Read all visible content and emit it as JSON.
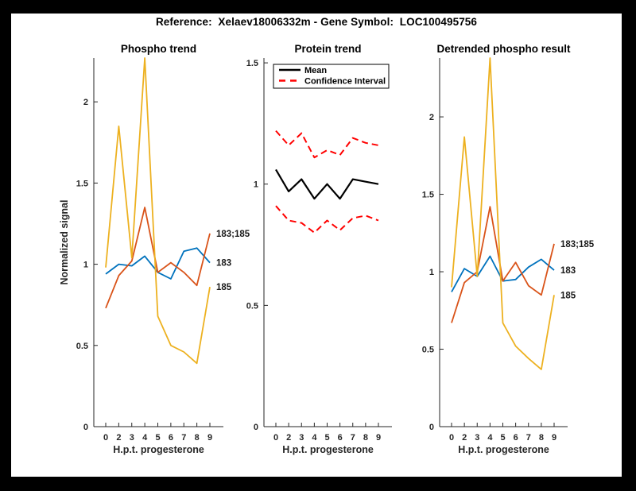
{
  "title": "Reference:  Xelaev18006332m - Gene Symbol:  LOC100495756",
  "colors": {
    "blue": "#0072BD",
    "orange": "#D95319",
    "yellow": "#EDB120",
    "red": "#FF0000",
    "black": "#000000",
    "axis": "#262626",
    "figure_background": "#ffffff",
    "page_border": "#000000"
  },
  "chart_data": [
    {
      "type": "line",
      "title": "Phospho trend",
      "xlabel": "H.p.t. progesterone",
      "ylabel": "Normalized signal",
      "x_tick_labels": [
        "0",
        "2",
        "3",
        "4",
        "5",
        "6",
        "7",
        "8",
        "9"
      ],
      "ylim": [
        0,
        2.27
      ],
      "yticks": [
        0,
        0.5,
        1,
        1.5,
        2
      ],
      "ytick_labels": [
        "0",
        "0.5",
        "1",
        "1.5",
        "2"
      ],
      "grid": false,
      "legend": null,
      "series": [
        {
          "name": "183",
          "color_key": "blue",
          "dashed": false,
          "end_label": "183",
          "values": [
            0.94,
            1.0,
            0.99,
            1.05,
            0.95,
            0.91,
            1.08,
            1.1,
            1.01
          ]
        },
        {
          "name": "183;185",
          "color_key": "orange",
          "dashed": false,
          "end_label": "183;185",
          "values": [
            0.73,
            0.93,
            1.02,
            1.35,
            0.95,
            1.01,
            0.95,
            0.87,
            1.19
          ]
        },
        {
          "name": "185",
          "color_key": "yellow",
          "dashed": false,
          "end_label": "185",
          "values": [
            0.98,
            1.85,
            1.04,
            2.27,
            0.68,
            0.5,
            0.46,
            0.39,
            0.86
          ]
        }
      ]
    },
    {
      "type": "line",
      "title": "Protein trend",
      "xlabel": "H.p.t. progesterone",
      "ylabel": "",
      "x_tick_labels": [
        "0",
        "2",
        "3",
        "4",
        "5",
        "6",
        "7",
        "8",
        "9"
      ],
      "ylim": [
        0,
        1.52
      ],
      "yticks": [
        0,
        0.5,
        1,
        1.5
      ],
      "ytick_labels": [
        "0",
        "0.5",
        "1",
        "1.5"
      ],
      "grid": false,
      "legend": {
        "position": "northwest",
        "entries": [
          {
            "label": "Mean",
            "color_key": "black",
            "dashed": false
          },
          {
            "label": "Confidence Interval",
            "color_key": "red",
            "dashed": true
          }
        ]
      },
      "series": [
        {
          "name": "Mean",
          "color_key": "black",
          "dashed": false,
          "end_label": null,
          "values": [
            1.06,
            0.97,
            1.02,
            0.94,
            1.0,
            0.94,
            1.02,
            1.01,
            1.0
          ]
        },
        {
          "name": "Confidence Interval upper",
          "color_key": "red",
          "dashed": true,
          "end_label": null,
          "values": [
            1.22,
            1.16,
            1.21,
            1.11,
            1.14,
            1.12,
            1.19,
            1.17,
            1.16
          ]
        },
        {
          "name": "Confidence Interval lower",
          "color_key": "red",
          "dashed": true,
          "end_label": null,
          "values": [
            0.91,
            0.85,
            0.84,
            0.8,
            0.85,
            0.81,
            0.86,
            0.87,
            0.85
          ]
        }
      ]
    },
    {
      "type": "line",
      "title": "Detrended phospho result",
      "xlabel": "H.p.t. progesterone",
      "ylabel": "",
      "x_tick_labels": [
        "0",
        "2",
        "3",
        "4",
        "5",
        "6",
        "7",
        "8",
        "9"
      ],
      "ylim": [
        0,
        2.38
      ],
      "yticks": [
        0,
        0.5,
        1,
        1.5,
        2
      ],
      "ytick_labels": [
        "0",
        "0.5",
        "1",
        "1.5",
        "2"
      ],
      "grid": false,
      "legend": null,
      "series": [
        {
          "name": "183",
          "color_key": "blue",
          "dashed": false,
          "end_label": "183",
          "values": [
            0.87,
            1.02,
            0.97,
            1.1,
            0.94,
            0.95,
            1.03,
            1.08,
            1.01
          ]
        },
        {
          "name": "183;185",
          "color_key": "orange",
          "dashed": false,
          "end_label": "183;185",
          "values": [
            0.67,
            0.93,
            1.0,
            1.42,
            0.94,
            1.06,
            0.91,
            0.85,
            1.18
          ]
        },
        {
          "name": "185",
          "color_key": "yellow",
          "dashed": false,
          "end_label": "185",
          "values": [
            0.9,
            1.87,
            0.97,
            2.38,
            0.67,
            0.52,
            0.44,
            0.37,
            0.85
          ]
        }
      ]
    }
  ]
}
